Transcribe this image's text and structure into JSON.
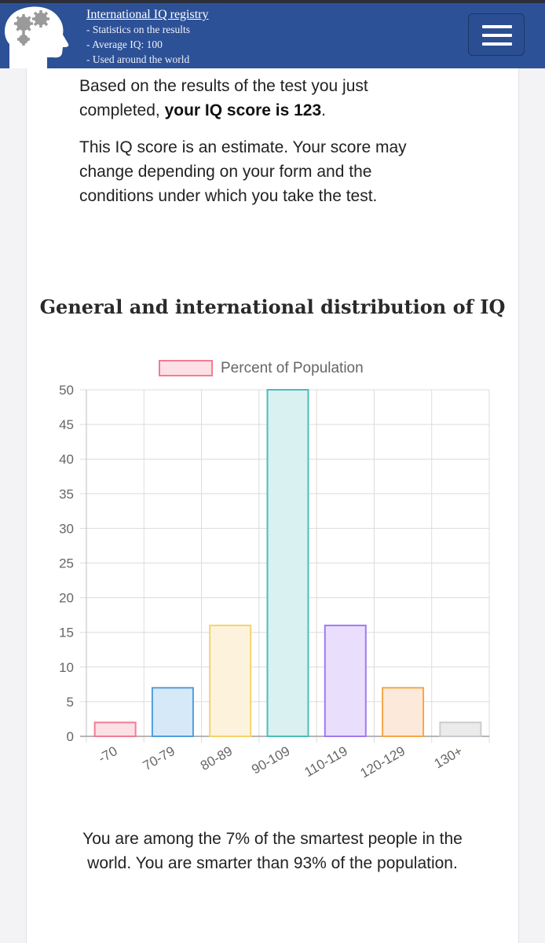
{
  "header": {
    "site_title": "International IQ registry",
    "lines": [
      "- Statistics on the results",
      "- Average IQ: 100",
      "- Used around the world"
    ],
    "logo_icon": "head-with-gears-icon",
    "menu_icon": "hamburger-menu-icon",
    "color": "#2d5197"
  },
  "intro": {
    "text_before": "Based on the results of the test you just completed, ",
    "score_bold": "your IQ score is 123",
    "text_after": "."
  },
  "note": "This IQ score is an estimate. Your score may change depending on your form and the conditions under which you take the test.",
  "chart_title": "General and international distribution of IQ",
  "chart_data": {
    "type": "bar",
    "title": "General and international distribution of IQ",
    "categories": [
      "-70",
      "70-79",
      "80-89",
      "90-109",
      "110-119",
      "120-129",
      "130+"
    ],
    "series": [
      {
        "name": "Percent of Population",
        "values": [
          2,
          7,
          16,
          50,
          16,
          7,
          2
        ]
      }
    ],
    "fill_colors": [
      "#fde0e6",
      "#d6e9f8",
      "#fdf3dd",
      "#d9f1f1",
      "#e9dffd",
      "#fde9d9",
      "#ebebeb"
    ],
    "border_colors": [
      "#f07d95",
      "#4f9fde",
      "#f6d36a",
      "#4cbdbb",
      "#a07af0",
      "#f5a64b",
      "#c9cbcf"
    ],
    "ylim": [
      0,
      50
    ],
    "yticks": [
      0,
      5,
      10,
      15,
      20,
      25,
      30,
      35,
      40,
      45,
      50
    ],
    "legend": "top",
    "grid": true
  },
  "result": "You are among the 7% of the smartest people in the world. You are smarter than 93% of the population."
}
